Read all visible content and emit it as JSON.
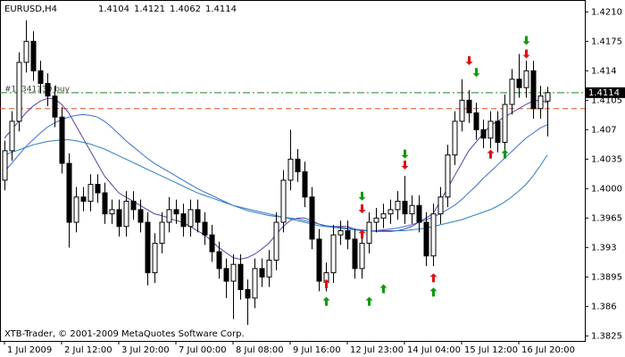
{
  "chart_data": {
    "type": "candlestick",
    "title": "EURUSD,H4",
    "order_label": "#19341130 buy",
    "copyright": "XTB-Trader, © 2001-2009 MetaQuotes Software Corp.",
    "categories": [
      "1 Jul 2009",
      null,
      null,
      null,
      null,
      null,
      null,
      null,
      "2 Jul 12:00",
      null,
      null,
      null,
      null,
      null,
      null,
      null,
      "3 Jul 20:00",
      null,
      null,
      null,
      null,
      null,
      null,
      null,
      "7 Jul 00:00",
      null,
      null,
      null,
      null,
      null,
      null,
      null,
      "8 Jul 08:00",
      null,
      null,
      null,
      null,
      null,
      null,
      null,
      "9 Jul 16:00",
      null,
      null,
      null,
      null,
      null,
      null,
      null,
      "12 Jul 23:00",
      null,
      null,
      null,
      null,
      null,
      null,
      null,
      "14 Jul 04:00",
      null,
      null,
      null,
      null,
      null,
      null,
      null,
      "15 Jul 12:00",
      null,
      null,
      null,
      null,
      null,
      null,
      null,
      "16 Jul 20:00",
      null,
      null,
      null,
      null
    ],
    "open": [
      1.401,
      1.4045,
      1.408,
      1.415,
      1.4175,
      1.414,
      1.4125,
      1.411,
      1.4085,
      1.403,
      1.396,
      1.399,
      1.3985,
      1.4005,
      1.3995,
      1.397,
      1.3975,
      1.3955,
      1.3985,
      1.3975,
      1.396,
      1.39,
      1.3935,
      1.396,
      1.3975,
      1.397,
      1.3955,
      1.3975,
      1.396,
      1.3945,
      1.3925,
      1.3905,
      1.389,
      1.391,
      1.388,
      1.387,
      1.3905,
      1.3895,
      1.3915,
      1.396,
      1.401,
      1.4035,
      1.402,
      1.399,
      1.394,
      1.389,
      1.39,
      1.3945,
      1.395,
      1.394,
      1.3905,
      1.3935,
      1.396,
      1.3965,
      1.397,
      1.3975,
      1.3985,
      1.397,
      1.398,
      1.396,
      1.392,
      1.397,
      1.399,
      1.404,
      1.408,
      1.4105,
      1.409,
      1.407,
      1.406,
      1.408,
      1.4055,
      1.41,
      1.413,
      1.412,
      1.414,
      1.4095,
      1.4104
    ],
    "high": [
      1.4057,
      1.4092,
      1.4162,
      1.42,
      1.4187,
      1.4152,
      1.4137,
      1.4122,
      1.4097,
      1.4042,
      1.4002,
      1.4002,
      1.4017,
      1.4017,
      1.4007,
      1.3987,
      1.3987,
      1.3997,
      1.3997,
      1.3987,
      1.3972,
      1.3947,
      1.3972,
      1.399,
      1.3987,
      1.3982,
      1.3987,
      1.3987,
      1.3972,
      1.3957,
      1.3937,
      1.3917,
      1.3922,
      1.3922,
      1.3892,
      1.3917,
      1.3917,
      1.3927,
      1.3972,
      1.4022,
      1.407,
      1.4047,
      1.4032,
      1.4002,
      1.3952,
      1.3912,
      1.3957,
      1.3962,
      1.3962,
      1.3952,
      1.3947,
      1.3972,
      1.3977,
      1.3982,
      1.3987,
      1.3997,
      1.4015,
      1.3992,
      1.3992,
      1.3972,
      1.3982,
      1.4002,
      1.4052,
      1.4092,
      1.413,
      1.4117,
      1.4102,
      1.4082,
      1.4092,
      1.4092,
      1.4112,
      1.4142,
      1.416,
      1.4152,
      1.4152,
      1.4122,
      1.4121
    ],
    "low": [
      1.3998,
      1.4033,
      1.4068,
      1.4138,
      1.4128,
      1.4113,
      1.4098,
      1.4073,
      1.4018,
      1.393,
      1.3948,
      1.3973,
      1.3973,
      1.3983,
      1.3958,
      1.3958,
      1.3943,
      1.3943,
      1.3963,
      1.3948,
      1.3885,
      1.3888,
      1.3923,
      1.3948,
      1.3958,
      1.3943,
      1.3943,
      1.3948,
      1.3933,
      1.3913,
      1.3893,
      1.387,
      1.3845,
      1.3868,
      1.3838,
      1.3858,
      1.3883,
      1.3883,
      1.3903,
      1.3948,
      1.3998,
      1.4008,
      1.3978,
      1.3928,
      1.3878,
      1.3878,
      1.3888,
      1.3933,
      1.3928,
      1.3893,
      1.3893,
      1.3923,
      1.3948,
      1.3953,
      1.3958,
      1.3963,
      1.3958,
      1.3958,
      1.3948,
      1.3908,
      1.3908,
      1.3958,
      1.3978,
      1.4028,
      1.4068,
      1.4078,
      1.4058,
      1.4048,
      1.4048,
      1.4043,
      1.4043,
      1.4088,
      1.4108,
      1.4108,
      1.4083,
      1.4083,
      1.4062
    ],
    "close": [
      1.4045,
      1.408,
      1.415,
      1.4175,
      1.414,
      1.4125,
      1.411,
      1.4085,
      1.403,
      1.396,
      1.399,
      1.3985,
      1.4005,
      1.3995,
      1.397,
      1.3975,
      1.3955,
      1.3985,
      1.3975,
      1.396,
      1.39,
      1.3935,
      1.396,
      1.3975,
      1.397,
      1.3955,
      1.3975,
      1.396,
      1.3945,
      1.3925,
      1.3905,
      1.389,
      1.391,
      1.388,
      1.387,
      1.3905,
      1.3895,
      1.3915,
      1.396,
      1.401,
      1.4035,
      1.402,
      1.399,
      1.394,
      1.389,
      1.39,
      1.3945,
      1.395,
      1.394,
      1.3905,
      1.3935,
      1.396,
      1.3965,
      1.397,
      1.3975,
      1.3985,
      1.397,
      1.398,
      1.396,
      1.392,
      1.397,
      1.399,
      1.404,
      1.408,
      1.4105,
      1.409,
      1.407,
      1.406,
      1.408,
      1.4055,
      1.41,
      1.413,
      1.412,
      1.414,
      1.4095,
      1.411,
      1.4114
    ],
    "bull_color": "#ffffff",
    "bear_color": "#000000",
    "lines": [
      {
        "color": "#5a3fa0",
        "values": [
          1.406,
          1.407,
          1.408,
          1.409,
          1.4098,
          1.4104,
          1.4107,
          1.4107,
          1.41,
          1.409,
          1.4075,
          1.406,
          1.4045,
          1.403,
          1.4015,
          1.4005,
          1.3995,
          1.399,
          1.3985,
          1.398,
          1.3975,
          1.397,
          1.3968,
          1.3965,
          1.3962,
          1.396,
          1.3955,
          1.395,
          1.3945,
          1.3938,
          1.393,
          1.3924,
          1.3918,
          1.3916,
          1.3918,
          1.3922,
          1.3928,
          1.3935,
          1.3945,
          1.3955,
          1.3962,
          1.3965,
          1.3965,
          1.3962,
          1.3958,
          1.3955,
          1.3955,
          1.3955,
          1.3955,
          1.3952,
          1.395,
          1.395,
          1.395,
          1.395,
          1.395,
          1.395,
          1.3952,
          1.3955,
          1.396,
          1.3965,
          1.397,
          1.3985,
          1.4,
          1.4015,
          1.403,
          1.4045,
          1.4055,
          1.4065,
          1.4075,
          1.408,
          1.4085,
          1.409,
          1.4095,
          1.41,
          1.4104,
          1.4105,
          1.4102
        ]
      },
      {
        "color": "#3a6fd0",
        "values": [
          1.402,
          1.403,
          1.404,
          1.405,
          1.4058,
          1.4066,
          1.4073,
          1.4078,
          1.4082,
          1.4085,
          1.4087,
          1.4088,
          1.4087,
          1.4085,
          1.408,
          1.4073,
          1.4065,
          1.4057,
          1.405,
          1.4043,
          1.4036,
          1.403,
          1.4025,
          1.402,
          1.4015,
          1.401,
          1.4005,
          1.4,
          1.3996,
          1.3992,
          1.3988,
          1.3984,
          1.398,
          1.3977,
          1.3974,
          1.3972,
          1.397,
          1.3968,
          1.3967,
          1.3966,
          1.3965,
          1.3964,
          1.3962,
          1.396,
          1.3958,
          1.3956,
          1.3955,
          1.3954,
          1.3953,
          1.3952,
          1.3951,
          1.395,
          1.395,
          1.3951,
          1.3952,
          1.3953,
          1.3955,
          1.3957,
          1.396,
          1.3963,
          1.3966,
          1.397,
          1.3975,
          1.398,
          1.3987,
          1.3995,
          1.4003,
          1.4012,
          1.402,
          1.4028,
          1.4036,
          1.4044,
          1.4052,
          1.406,
          1.4066,
          1.4072,
          1.4076
        ]
      },
      {
        "color": "#2a7fc0",
        "values": [
          1.404,
          1.4043,
          1.4046,
          1.4049,
          1.4052,
          1.4054,
          1.4056,
          1.4057,
          1.4058,
          1.4058,
          1.4057,
          1.4055,
          1.4053,
          1.405,
          1.4047,
          1.4043,
          1.4039,
          1.4035,
          1.4031,
          1.4027,
          1.4023,
          1.4019,
          1.4015,
          1.4011,
          1.4007,
          1.4003,
          1.3999,
          1.3995,
          1.3992,
          1.3989,
          1.3986,
          1.3983,
          1.398,
          1.3978,
          1.3976,
          1.3974,
          1.3972,
          1.397,
          1.3968,
          1.3966,
          1.3964,
          1.3962,
          1.396,
          1.3958,
          1.3956,
          1.3955,
          1.3954,
          1.3953,
          1.3952,
          1.3951,
          1.395,
          1.395,
          1.3949,
          1.3949,
          1.3949,
          1.395,
          1.395,
          1.3951,
          1.3952,
          1.3953,
          1.3955,
          1.3957,
          1.3959,
          1.3961,
          1.3963,
          1.3966,
          1.3969,
          1.3972,
          1.3975,
          1.3979,
          1.3984,
          1.399,
          1.3997,
          1.4005,
          1.4015,
          1.4027,
          1.404
        ]
      }
    ],
    "price_line_color": "#208020",
    "order_level": {
      "value": 1.4095,
      "color": "#e05020"
    },
    "signals": [
      {
        "bar": 45,
        "price": 1.3866,
        "direction": "up",
        "color": "#0a9a0a"
      },
      {
        "bar": 51,
        "price": 1.3866,
        "direction": "up",
        "color": "#0a9a0a"
      },
      {
        "bar": 53,
        "price": 1.3881,
        "direction": "up",
        "color": "#0a9a0a"
      },
      {
        "bar": 60,
        "price": 1.3877,
        "direction": "up",
        "color": "#0a9a0a"
      },
      {
        "bar": 70,
        "price": 1.4041,
        "direction": "up",
        "color": "#0a9a0a"
      },
      {
        "bar": 45,
        "price": 1.3887,
        "direction": "up",
        "color": "#e01010"
      },
      {
        "bar": 50,
        "price": 1.3946,
        "direction": "up",
        "color": "#e01010"
      },
      {
        "bar": 60,
        "price": 1.3894,
        "direction": "up",
        "color": "#e01010"
      },
      {
        "bar": 68,
        "price": 1.4041,
        "direction": "up",
        "color": "#e01010"
      },
      {
        "bar": 50,
        "price": 1.3991,
        "direction": "down",
        "color": "#0a9a0a"
      },
      {
        "bar": 56,
        "price": 1.4041,
        "direction": "down",
        "color": "#0a9a0a"
      },
      {
        "bar": 66,
        "price": 1.4138,
        "direction": "down",
        "color": "#0a9a0a"
      },
      {
        "bar": 73,
        "price": 1.4176,
        "direction": "down",
        "color": "#0a9a0a"
      },
      {
        "bar": 50,
        "price": 1.3976,
        "direction": "down",
        "color": "#e01010"
      },
      {
        "bar": 56,
        "price": 1.4028,
        "direction": "down",
        "color": "#e01010"
      },
      {
        "bar": 65,
        "price": 1.4152,
        "direction": "down",
        "color": "#e01010"
      },
      {
        "bar": 73,
        "price": 1.416,
        "direction": "down",
        "color": "#e01010"
      }
    ],
    "ylim": [
      1.3819,
      1.4222
    ],
    "yticks": [
      {
        "value": 1.421,
        "label": "1.4210"
      },
      1.4175,
      1.414,
      1.4105,
      1.407,
      1.4035,
      {
        "value": 1.4,
        "label": "1.4000"
      },
      1.3965,
      1.393,
      1.3895,
      1.386,
      1.3825
    ]
  }
}
